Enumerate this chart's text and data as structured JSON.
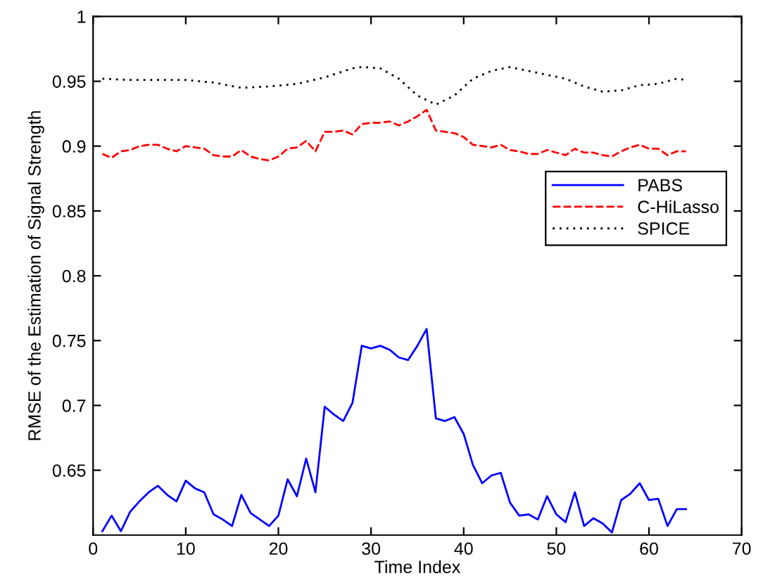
{
  "chart_data": {
    "type": "line",
    "xlabel": "Time Index",
    "ylabel": "RMSE of the Estimation of Signal Strength",
    "xlim": [
      0,
      70
    ],
    "xticks": [
      0,
      10,
      20,
      30,
      40,
      50,
      60,
      70
    ],
    "ylim": [
      0.6,
      1
    ],
    "yticks": [
      0.65,
      0.7,
      0.75,
      0.8,
      0.85,
      0.9,
      0.95,
      1
    ],
    "grid": false,
    "legend": "right",
    "x": [
      1,
      2,
      3,
      4,
      5,
      6,
      7,
      8,
      9,
      10,
      11,
      12,
      13,
      14,
      15,
      16,
      17,
      18,
      19,
      20,
      21,
      22,
      23,
      24,
      25,
      26,
      27,
      28,
      29,
      30,
      31,
      32,
      33,
      34,
      35,
      36,
      37,
      38,
      39,
      40,
      41,
      42,
      43,
      44,
      45,
      46,
      47,
      48,
      49,
      50,
      51,
      52,
      53,
      54,
      55,
      56,
      57,
      58,
      59,
      60,
      61,
      62,
      63,
      64
    ],
    "series": [
      {
        "name": "PABS",
        "color": "#0000ff",
        "line_style": "solid",
        "values": [
          0.603,
          0.615,
          0.603,
          0.618,
          0.626,
          0.633,
          0.638,
          0.631,
          0.626,
          0.642,
          0.636,
          0.633,
          0.616,
          0.612,
          0.607,
          0.631,
          0.617,
          0.612,
          0.607,
          0.615,
          0.643,
          0.63,
          0.659,
          0.633,
          0.699,
          0.693,
          0.688,
          0.702,
          0.746,
          0.744,
          0.746,
          0.743,
          0.737,
          0.735,
          0.746,
          0.759,
          0.69,
          0.688,
          0.691,
          0.678,
          0.654,
          0.64,
          0.646,
          0.648,
          0.625,
          0.615,
          0.616,
          0.612,
          0.63,
          0.616,
          0.61,
          0.633,
          0.607,
          0.613,
          0.609,
          0.602,
          0.627,
          0.632,
          0.64,
          0.627,
          0.628,
          0.607,
          0.62,
          0.62
        ]
      },
      {
        "name": "C-HiLasso",
        "color": "#ff0000",
        "line_style": "dashed",
        "values": [
          0.894,
          0.891,
          0.896,
          0.897,
          0.9,
          0.901,
          0.901,
          0.898,
          0.896,
          0.9,
          0.899,
          0.898,
          0.893,
          0.892,
          0.892,
          0.897,
          0.892,
          0.89,
          0.889,
          0.892,
          0.898,
          0.899,
          0.904,
          0.896,
          0.911,
          0.911,
          0.912,
          0.909,
          0.917,
          0.918,
          0.918,
          0.919,
          0.916,
          0.919,
          0.923,
          0.928,
          0.912,
          0.911,
          0.91,
          0.907,
          0.901,
          0.9,
          0.899,
          0.901,
          0.897,
          0.896,
          0.894,
          0.894,
          0.897,
          0.895,
          0.893,
          0.898,
          0.895,
          0.895,
          0.893,
          0.892,
          0.896,
          0.899,
          0.901,
          0.898,
          0.898,
          0.893,
          0.896,
          0.896
        ]
      },
      {
        "name": "SPICE",
        "color": "#000000",
        "line_style": "dotted",
        "x": [
          1,
          4,
          7,
          10,
          13,
          16,
          19,
          22,
          25,
          28,
          29,
          31,
          33,
          35,
          37,
          39,
          41,
          43,
          45,
          47,
          49,
          51,
          53,
          55,
          57,
          59,
          61,
          63,
          64
        ],
        "values": [
          0.952,
          0.951,
          0.951,
          0.951,
          0.949,
          0.945,
          0.946,
          0.948,
          0.953,
          0.96,
          0.961,
          0.96,
          0.952,
          0.939,
          0.932,
          0.939,
          0.952,
          0.958,
          0.961,
          0.958,
          0.955,
          0.952,
          0.946,
          0.942,
          0.943,
          0.947,
          0.948,
          0.952,
          0.951
        ]
      }
    ]
  }
}
